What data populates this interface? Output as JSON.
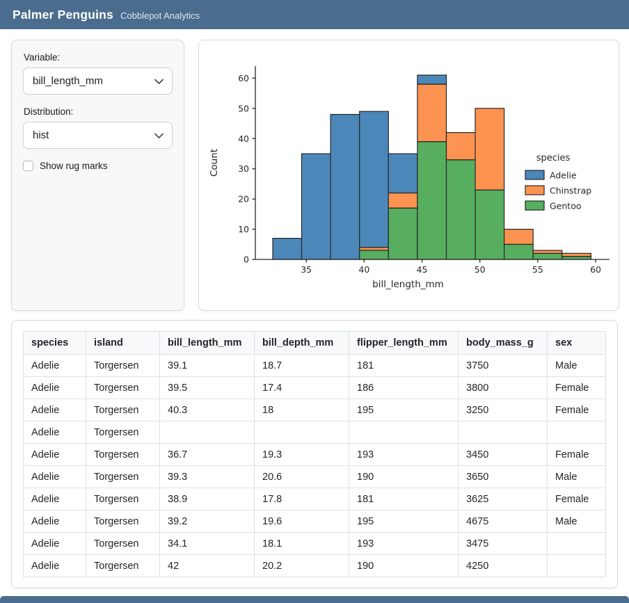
{
  "navbar": {
    "title": "Palmer Penguins",
    "subtitle": "Cobblepot Analytics"
  },
  "sidebar": {
    "variable_label": "Variable:",
    "variable_value": "bill_length_mm",
    "distribution_label": "Distribution:",
    "distribution_value": "hist",
    "rug_label": "Show rug marks",
    "rug_checked": false
  },
  "colors": {
    "navbar_bg": "#4a6d8f",
    "adelie": "#4c87b9",
    "chinstrap": "#fc9350",
    "gentoo": "#57ae5f",
    "bar_edge": "#262626",
    "axis": "#262626"
  },
  "chart_data": {
    "type": "bar",
    "subtype": "stacked-histogram",
    "title": "",
    "xlabel": "bill_length_mm",
    "ylabel": "Count",
    "xlim": [
      30.6,
      61.2
    ],
    "ylim": [
      0,
      64
    ],
    "xticks": [
      35,
      40,
      45,
      50,
      55,
      60
    ],
    "yticks": [
      0,
      10,
      20,
      30,
      40,
      50,
      60
    ],
    "grid": false,
    "bin_edges": [
      32.1,
      34.6,
      37.1,
      39.6,
      42.1,
      44.6,
      47.1,
      49.6,
      52.1,
      54.6,
      57.1,
      59.6
    ],
    "series": [
      {
        "name": "Gentoo",
        "color": "#57ae5f",
        "values": [
          0,
          0,
          0,
          3,
          17,
          39,
          33,
          23,
          5,
          2,
          1
        ]
      },
      {
        "name": "Chinstrap",
        "color": "#fc9350",
        "values": [
          0,
          0,
          0,
          1,
          5,
          19,
          9,
          27,
          5,
          1,
          1
        ]
      },
      {
        "name": "Adelie",
        "color": "#4c87b9",
        "values": [
          7,
          35,
          48,
          45,
          13,
          3,
          0,
          0,
          0,
          0,
          0
        ]
      }
    ],
    "bar_totals": [
      7,
      35,
      48,
      49,
      35,
      61,
      42,
      50,
      10,
      3,
      2
    ],
    "legend": {
      "title": "species",
      "position": "right",
      "entries": [
        {
          "label": "Adelie",
          "color": "#4c87b9"
        },
        {
          "label": "Chinstrap",
          "color": "#fc9350"
        },
        {
          "label": "Gentoo",
          "color": "#57ae5f"
        }
      ]
    }
  },
  "table": {
    "columns": [
      "species",
      "island",
      "bill_length_mm",
      "bill_depth_mm",
      "flipper_length_mm",
      "body_mass_g",
      "sex"
    ],
    "rows": [
      [
        "Adelie",
        "Torgersen",
        "39.1",
        "18.7",
        "181",
        "3750",
        "Male"
      ],
      [
        "Adelie",
        "Torgersen",
        "39.5",
        "17.4",
        "186",
        "3800",
        "Female"
      ],
      [
        "Adelie",
        "Torgersen",
        "40.3",
        "18",
        "195",
        "3250",
        "Female"
      ],
      [
        "Adelie",
        "Torgersen",
        "",
        "",
        "",
        "",
        ""
      ],
      [
        "Adelie",
        "Torgersen",
        "36.7",
        "19.3",
        "193",
        "3450",
        "Female"
      ],
      [
        "Adelie",
        "Torgersen",
        "39.3",
        "20.6",
        "190",
        "3650",
        "Male"
      ],
      [
        "Adelie",
        "Torgersen",
        "38.9",
        "17.8",
        "181",
        "3625",
        "Female"
      ],
      [
        "Adelie",
        "Torgersen",
        "39.2",
        "19.6",
        "195",
        "4675",
        "Male"
      ],
      [
        "Adelie",
        "Torgersen",
        "34.1",
        "18.1",
        "193",
        "3475",
        ""
      ],
      [
        "Adelie",
        "Torgersen",
        "42",
        "20.2",
        "190",
        "4250",
        ""
      ]
    ]
  }
}
